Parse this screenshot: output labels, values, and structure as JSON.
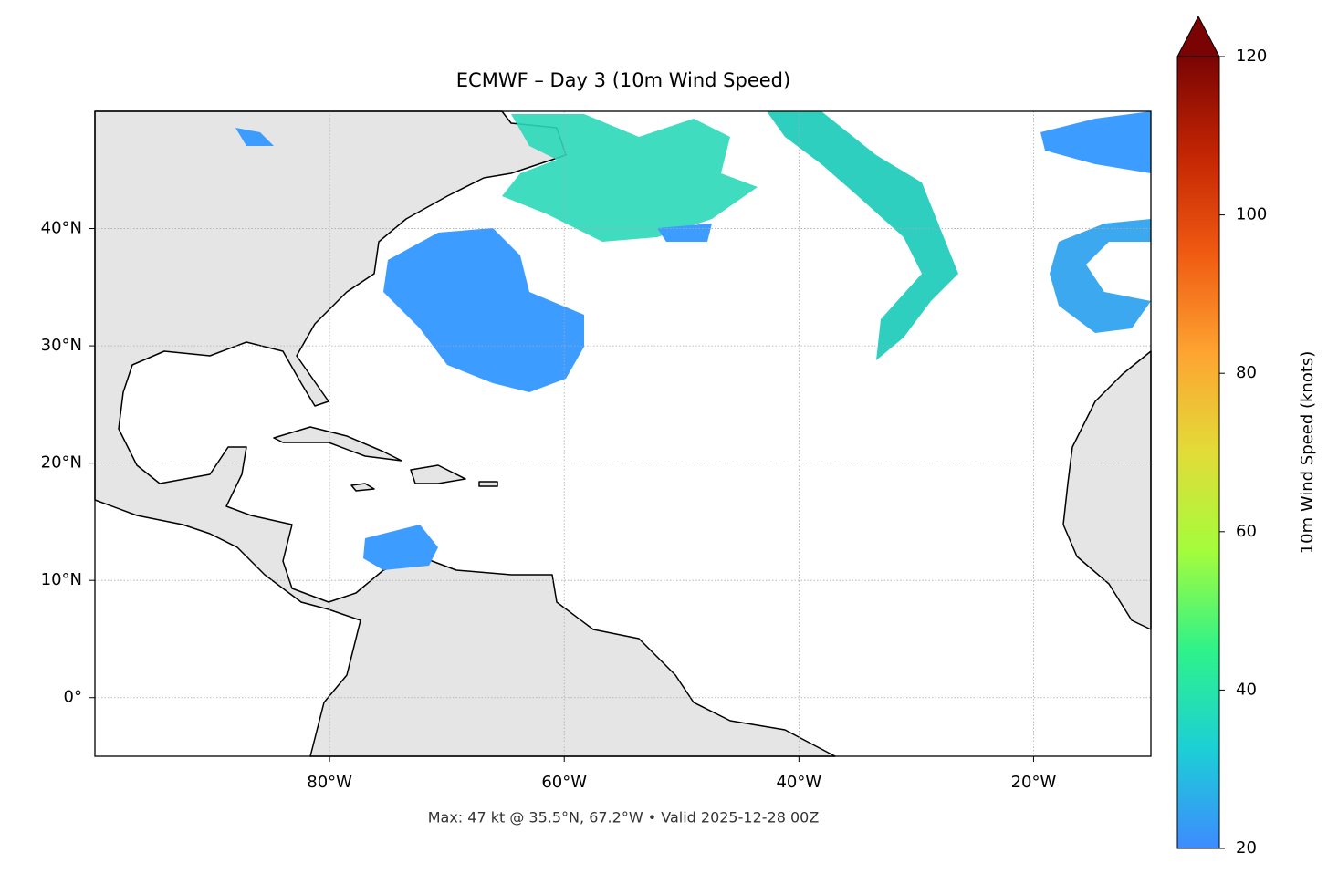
{
  "chart_data": {
    "type": "map",
    "title": "ECMWF – Day 3 (10m Wind Speed)",
    "footer": "Max: 47 kt @ 35.5°N, 67.2°W • Valid 2025-12-28 00Z",
    "xlim": [
      -100,
      -10
    ],
    "ylim": [
      -5,
      50
    ],
    "xticks": [
      {
        "value": -80,
        "label": "80°W"
      },
      {
        "value": -60,
        "label": "60°W"
      },
      {
        "value": -40,
        "label": "40°W"
      },
      {
        "value": -20,
        "label": "20°W"
      }
    ],
    "yticks": [
      {
        "value": 0,
        "label": "0°"
      },
      {
        "value": 10,
        "label": "10°N"
      },
      {
        "value": 20,
        "label": "20°N"
      },
      {
        "value": 30,
        "label": "30°N"
      },
      {
        "value": 40,
        "label": "40°N"
      }
    ],
    "grid": true,
    "colorbar": {
      "label": "10m Wind Speed (knots)",
      "clim": [
        20,
        120
      ],
      "ticks": [
        20,
        40,
        60,
        80,
        100,
        120
      ],
      "colors": [
        "#3d8bff",
        "#1ccfd5",
        "#2ef28a",
        "#a4fc3c",
        "#e2dc38",
        "#fea431",
        "#f05b12",
        "#c42503",
        "#7a0403"
      ]
    }
  }
}
